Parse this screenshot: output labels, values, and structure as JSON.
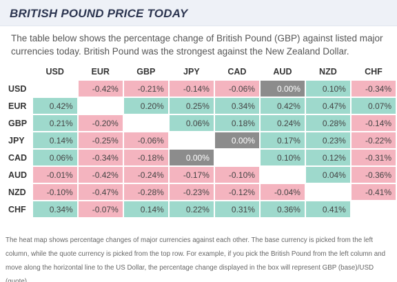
{
  "header": {
    "title": "BRITISH POUND PRICE TODAY"
  },
  "description": "The table below shows the percentage change of British Pound (GBP) against listed major currencies today. British Pound was the strongest against the New Zealand Dollar.",
  "heatmap": {
    "columns": [
      "USD",
      "EUR",
      "GBP",
      "JPY",
      "CAD",
      "AUD",
      "NZD",
      "CHF"
    ],
    "rows": [
      {
        "label": "USD",
        "cells": [
          "",
          "-0.42%",
          "-0.21%",
          "-0.14%",
          "-0.06%",
          "0.00%",
          "0.10%",
          "-0.34%"
        ]
      },
      {
        "label": "EUR",
        "cells": [
          "0.42%",
          "",
          "0.20%",
          "0.25%",
          "0.34%",
          "0.42%",
          "0.47%",
          "0.07%"
        ]
      },
      {
        "label": "GBP",
        "cells": [
          "0.21%",
          "-0.20%",
          "",
          "0.06%",
          "0.18%",
          "0.24%",
          "0.28%",
          "-0.14%"
        ]
      },
      {
        "label": "JPY",
        "cells": [
          "0.14%",
          "-0.25%",
          "-0.06%",
          "",
          "0.00%",
          "0.17%",
          "0.23%",
          "-0.22%"
        ]
      },
      {
        "label": "CAD",
        "cells": [
          "0.06%",
          "-0.34%",
          "-0.18%",
          "0.00%",
          "",
          "0.10%",
          "0.12%",
          "-0.31%"
        ]
      },
      {
        "label": "AUD",
        "cells": [
          "-0.01%",
          "-0.42%",
          "-0.24%",
          "-0.17%",
          "-0.10%",
          "",
          "0.04%",
          "-0.36%"
        ]
      },
      {
        "label": "NZD",
        "cells": [
          "-0.10%",
          "-0.47%",
          "-0.28%",
          "-0.23%",
          "-0.12%",
          "-0.04%",
          "",
          "-0.41%"
        ]
      },
      {
        "label": "CHF",
        "cells": [
          "0.34%",
          "-0.07%",
          "0.14%",
          "0.22%",
          "0.31%",
          "0.36%",
          "0.41%",
          ""
        ]
      }
    ],
    "colors": {
      "positive": "#9ed9cc",
      "negative": "#f4b4bf",
      "zero": "#8c8c8c"
    }
  },
  "footnote": "The heat map shows percentage changes of major currencies against each other. The base currency is picked from the left column, while the quote currency is picked from the top row. For example, if you pick the British Pound from the left column and move along the horizontal line to the US Dollar, the percentage change displayed in the box will represent GBP (base)/USD (quote)."
}
